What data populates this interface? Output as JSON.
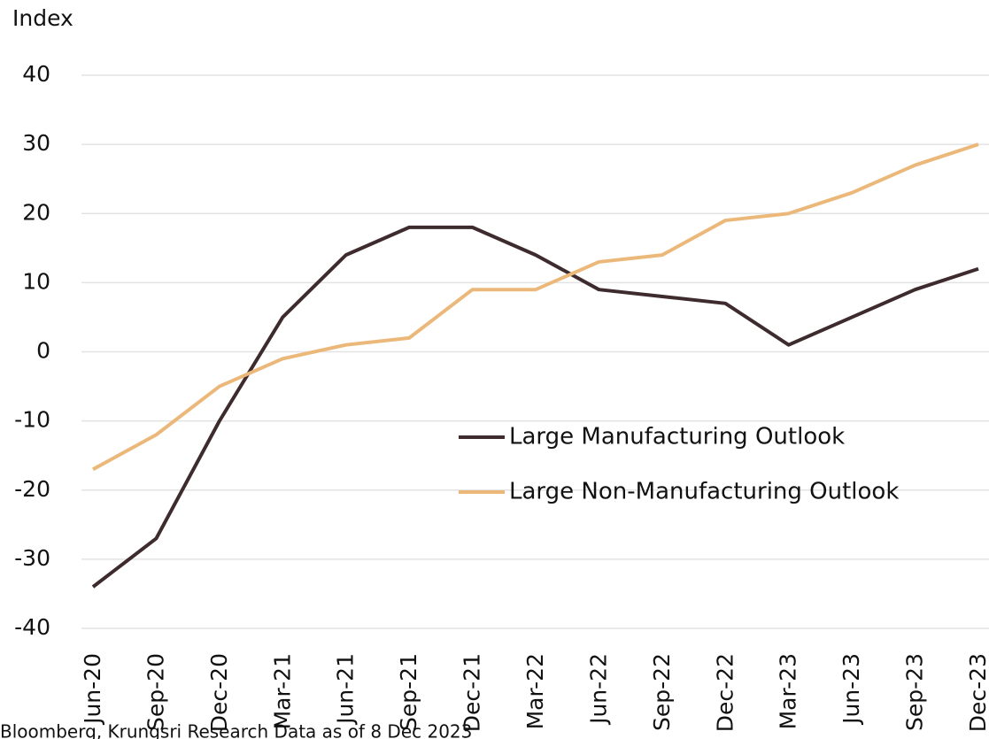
{
  "chart_data": {
    "type": "line",
    "y_label": "Index",
    "categories": [
      "Jun-20",
      "Sep-20",
      "Dec-20",
      "Mar-21",
      "Jun-21",
      "Sep-21",
      "Dec-21",
      "Mar-22",
      "Jun-22",
      "Sep-22",
      "Dec-22",
      "Mar-23",
      "Jun-23",
      "Sep-23",
      "Dec-23"
    ],
    "series": [
      {
        "name": "Large Manufacturing Outlook",
        "color": "#3d2b2e",
        "values": [
          -34,
          -27,
          -10,
          5,
          14,
          18,
          18,
          14,
          9,
          8,
          7,
          1,
          5,
          9,
          12
        ]
      },
      {
        "name": "Large Non-Manufacturing Outlook",
        "color": "#ebb87a",
        "values": [
          -17,
          -12,
          -5,
          -1,
          1,
          2,
          9,
          9,
          13,
          14,
          19,
          20,
          23,
          27,
          30
        ]
      }
    ],
    "ylim": [
      -40,
      40
    ],
    "yticks": [
      -40,
      -30,
      -20,
      -10,
      0,
      10,
      20,
      30,
      40
    ],
    "grid": true,
    "source": "Bloomberg, Krungsri Research Data as of 8 Dec 2023"
  }
}
